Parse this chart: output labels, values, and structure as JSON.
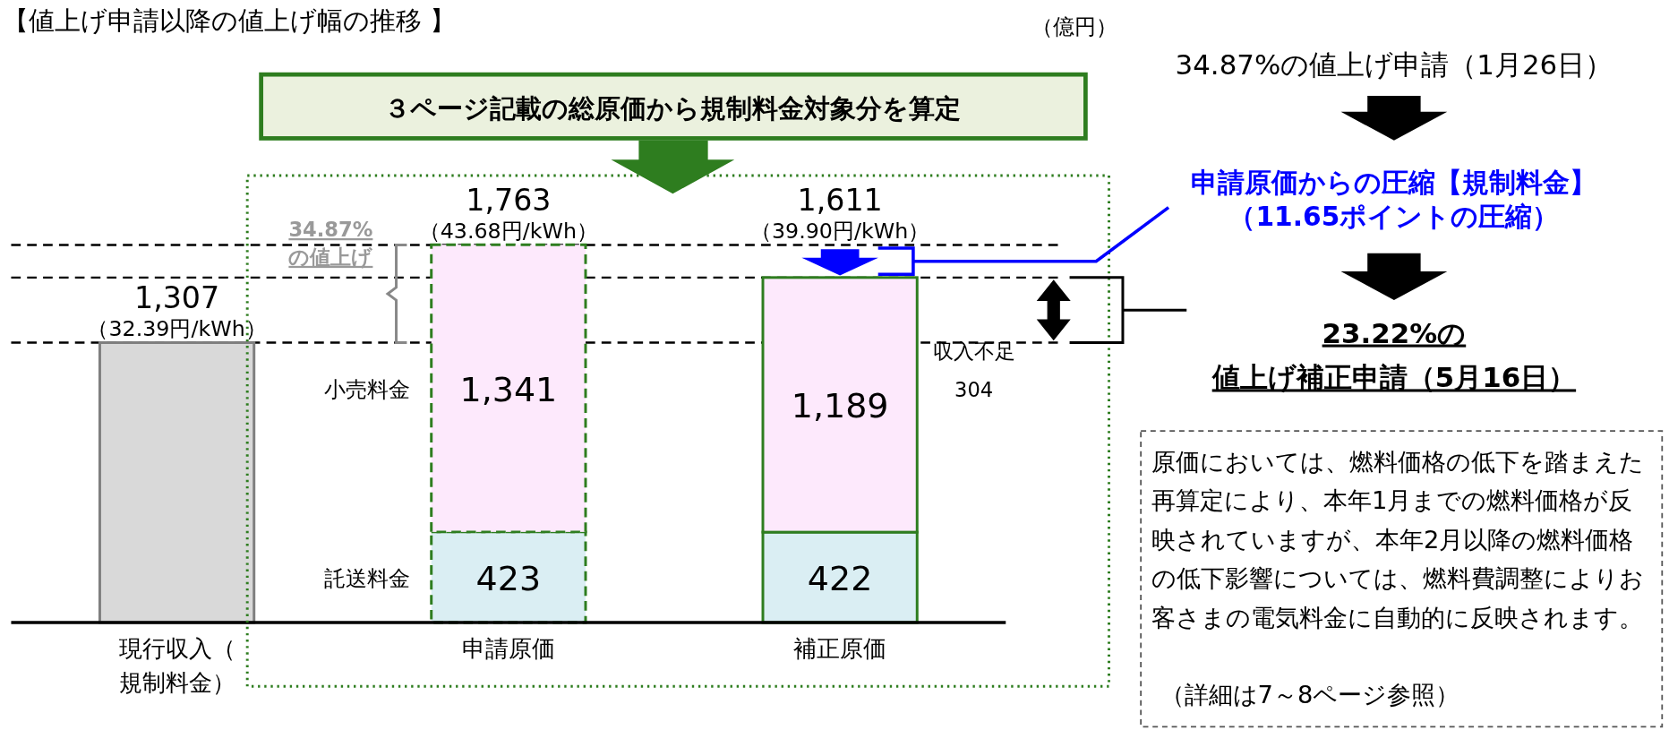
{
  "chart_data": {
    "type": "bar",
    "stacked": true,
    "title": "【値上げ申請以降の値上げ幅の推移 】",
    "categories": [
      "現行収入（規制料金）",
      "申請原価",
      "補正原価"
    ],
    "series": [
      {
        "color": "#d9d9d9",
        "values": [
          1307,
          null,
          null
        ]
      },
      {
        "name": "託送料金",
        "color": "#daeef3",
        "values": [
          null,
          423,
          422
        ],
        "value_labels": [
          null,
          "423",
          "422"
        ]
      },
      {
        "name": "小売料金",
        "color": "#fde9fc",
        "values": [
          null,
          1341,
          1189
        ],
        "value_labels": [
          null,
          "1,341",
          "1,189"
        ]
      }
    ],
    "totals": [
      "1,307",
      "1,763",
      "1,611"
    ],
    "ref_lines": [
      {
        "axis": "y",
        "value": 1307,
        "color": "#000000",
        "line_style": "dashed"
      },
      {
        "axis": "y",
        "value": 1611,
        "color": "#000000",
        "line_style": "dashed"
      },
      {
        "axis": "y",
        "value": 1763,
        "color": "#000000",
        "line_style": "dashed"
      }
    ],
    "annotations": [
      "（億円）",
      "３ページ記載の総原価から規制料金対象分を算定",
      "34.87%",
      "の値上げ",
      "収入不足",
      "304",
      "34.87%の値上げ申請（1月26日）",
      "申請原価からの圧縮【規制料金】",
      "（11.65ポイントの圧縮）",
      "23.22%の",
      "値上げ補正申請（5月16日）",
      "原価においては、燃料価格の低下を踏まえた再算定により、本年1月までの燃料価格が反映されていますが、本年2月以降の燃料価格の低下影響については、燃料費調整によりお客さまの電気料金に自動的に反映されます。",
      "（詳細は7～8ページ参照）",
      {
        "text": "（32.39円/kWh）",
        "x": "現行収入（規制料金）",
        "y": 1307
      },
      {
        "text": "（43.68円/kWh）",
        "x": "申請原価",
        "y": 1763
      },
      {
        "text": "（39.90円/kWh）",
        "x": "補正原価",
        "y": 1611
      }
    ]
  }
}
